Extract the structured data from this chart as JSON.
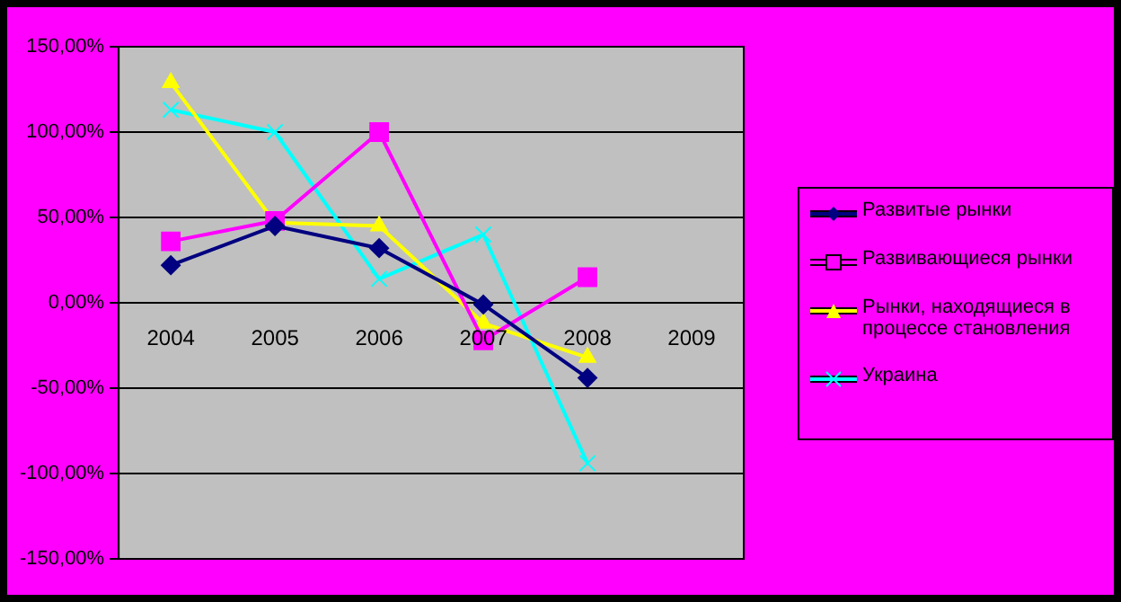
{
  "chart_data": {
    "type": "line",
    "categories": [
      "2004",
      "2005",
      "2006",
      "2007",
      "2008",
      "2009"
    ],
    "series": [
      {
        "name": "Развитые рынки",
        "color": "#000080",
        "marker": "diamond",
        "values": [
          22,
          45,
          32,
          -1,
          -44,
          null
        ]
      },
      {
        "name": "Развивающиеся рынки",
        "color": "#ff00ff",
        "marker": "square",
        "values": [
          36,
          48,
          100,
          -22,
          15,
          null
        ]
      },
      {
        "name": "Рынки, находящиеся в процессе становления",
        "color": "#ffff00",
        "marker": "triangle",
        "values": [
          129,
          47,
          45,
          -12,
          -32,
          null
        ]
      },
      {
        "name": "Украина",
        "color": "#00ffff",
        "marker": "cross",
        "values": [
          113,
          100,
          14,
          40,
          -94,
          null
        ]
      }
    ],
    "ylim": [
      -150,
      150
    ],
    "yticks": [
      {
        "value": -150,
        "label": "-150,00%"
      },
      {
        "value": -100,
        "label": "-100,00%"
      },
      {
        "value": -50,
        "label": "-50,00%"
      },
      {
        "value": 0,
        "label": "0,00%"
      },
      {
        "value": 50,
        "label": "50,00%"
      },
      {
        "value": 100,
        "label": "100,00%"
      },
      {
        "value": 150,
        "label": "150,00%"
      }
    ],
    "grid": "y",
    "legend": "right"
  }
}
